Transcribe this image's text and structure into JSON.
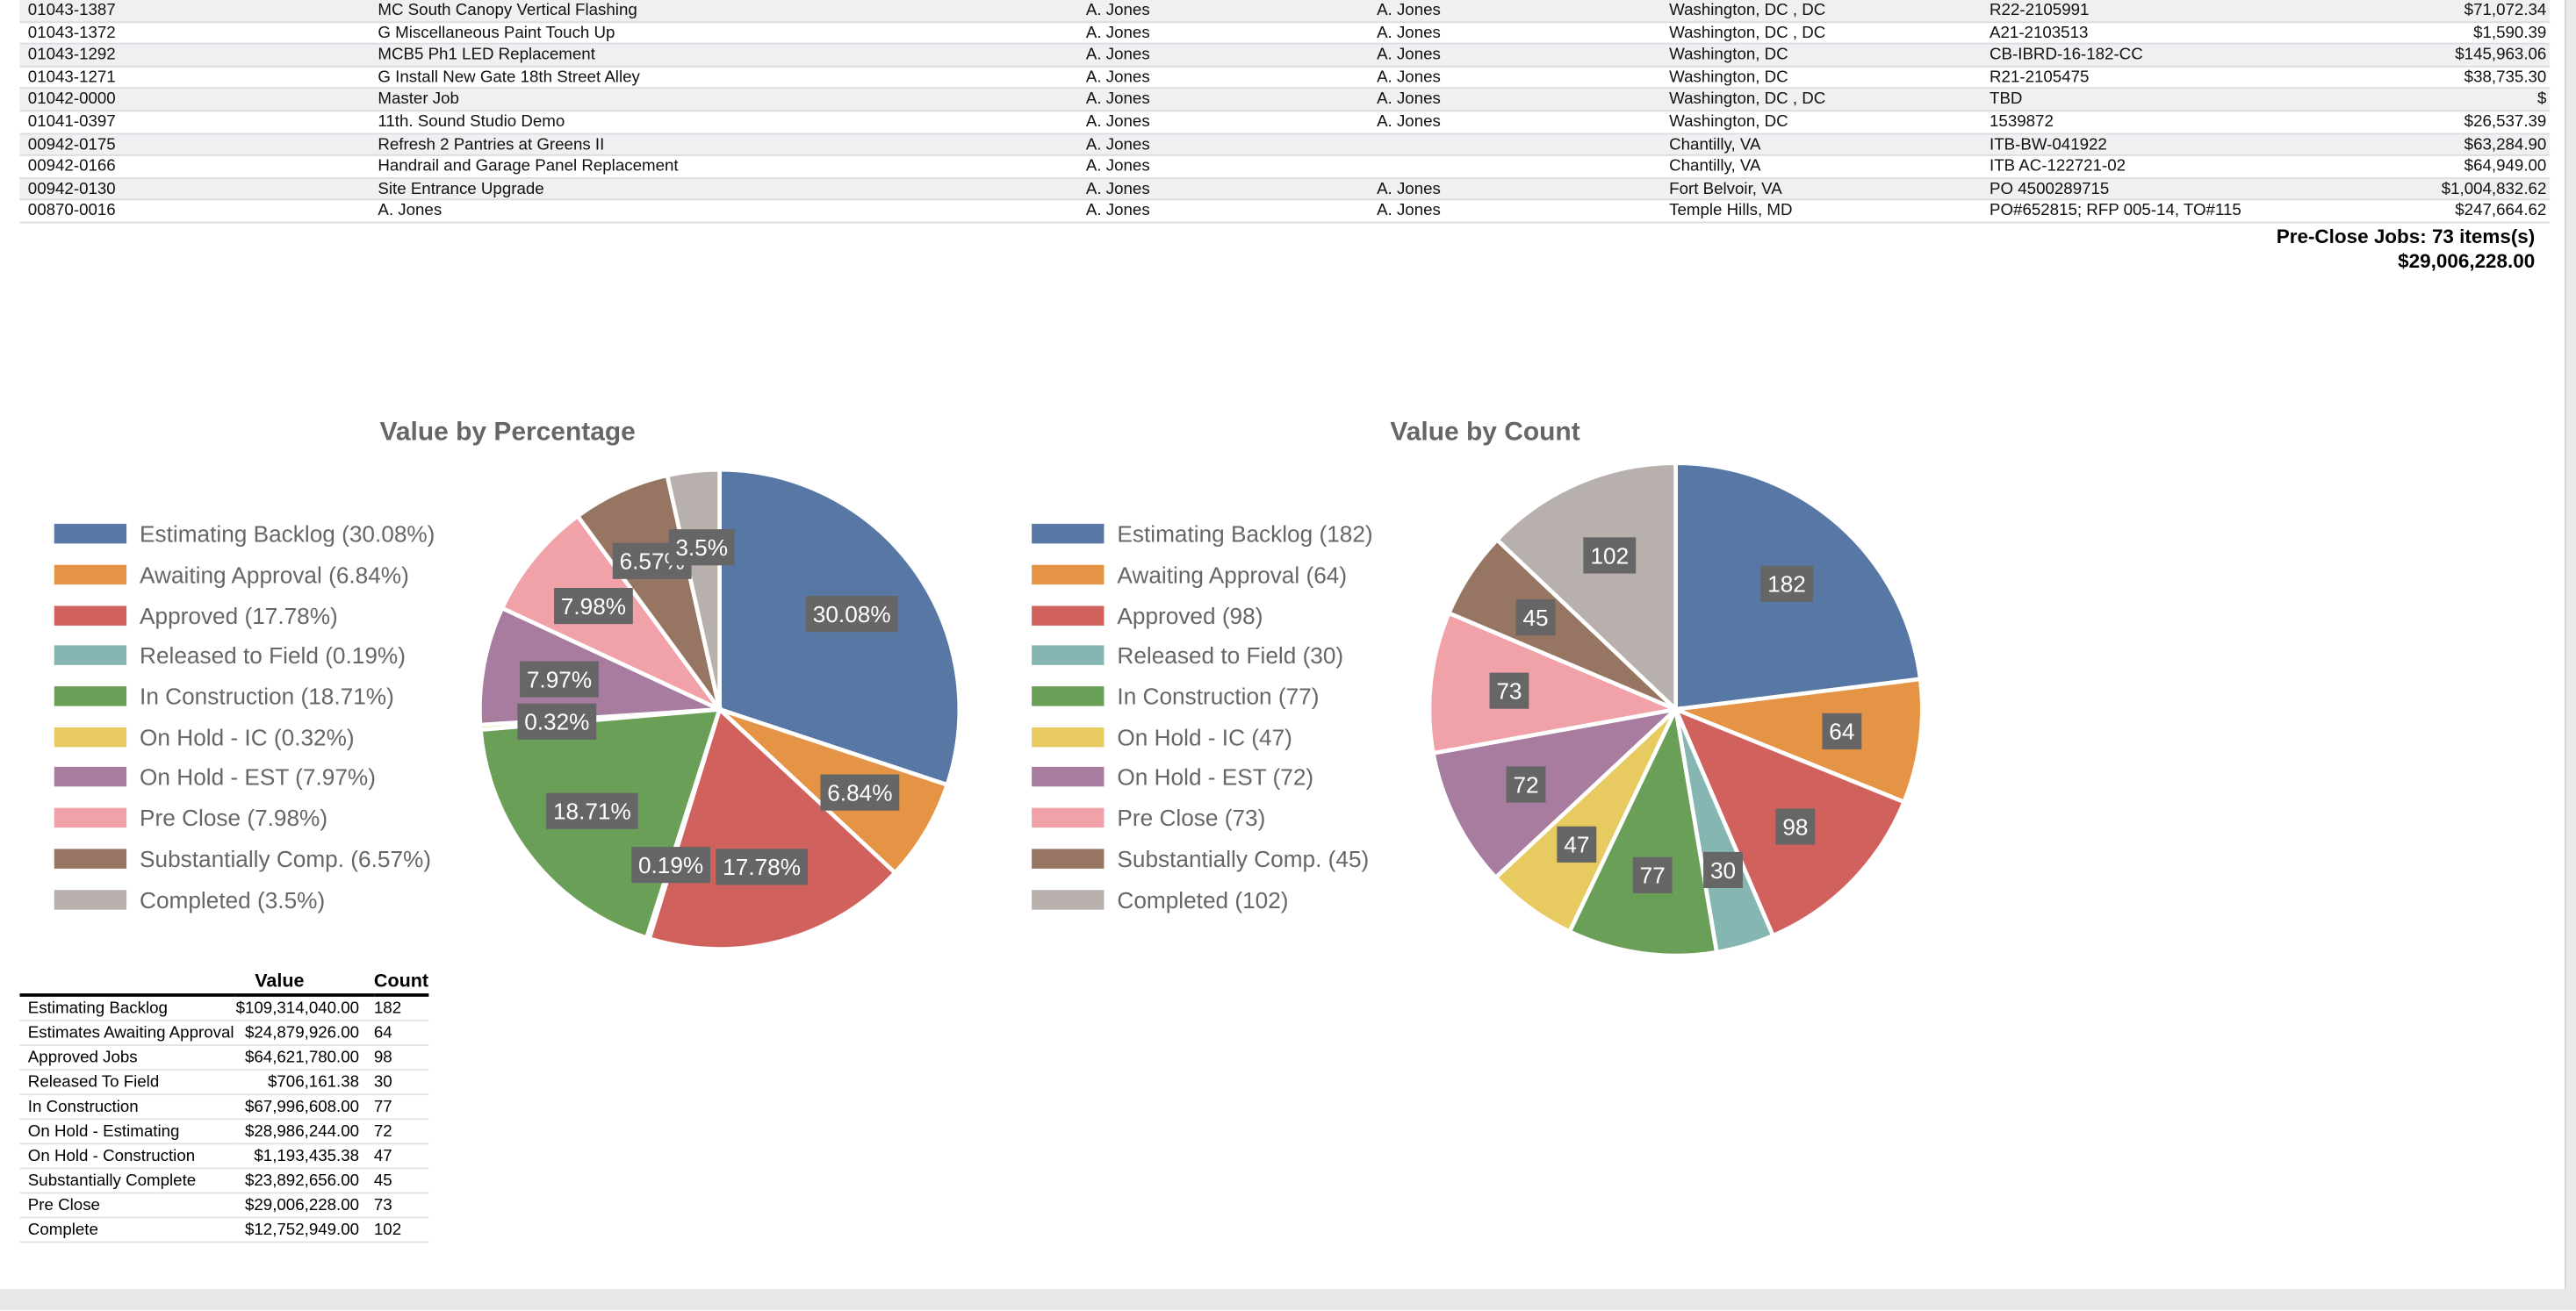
{
  "jobs": [
    [
      "01043-1387",
      "MC South Canopy Vertical Flashing",
      "A. Jones",
      "A. Jones",
      "Washington, DC , DC",
      "R22-2105991",
      "$71,072.34"
    ],
    [
      "01043-1372",
      "G Miscellaneous Paint Touch Up",
      "A. Jones",
      "A. Jones",
      "Washington, DC , DC",
      "A21-2103513",
      "$1,590.39"
    ],
    [
      "01043-1292",
      "MCB5 Ph1 LED Replacement",
      "A. Jones",
      "A. Jones",
      "Washington, DC",
      "CB-IBRD-16-182-CC",
      "$145,963.06"
    ],
    [
      "01043-1271",
      "G Install New Gate 18th Street Alley",
      "A. Jones",
      "A. Jones",
      "Washington, DC",
      "R21-2105475",
      "$38,735.30"
    ],
    [
      "01042-0000",
      "Master Job",
      "A. Jones",
      "A. Jones",
      "Washington, DC , DC",
      "TBD",
      "$"
    ],
    [
      "01041-0397",
      "11th. Sound Studio Demo",
      "A. Jones",
      "A. Jones",
      "Washington, DC",
      "1539872",
      "$26,537.39"
    ],
    [
      "00942-0175",
      "Refresh 2 Pantries at Greens II",
      "A. Jones",
      "",
      "Chantilly, VA",
      "ITB-BW-041922",
      "$63,284.90"
    ],
    [
      "00942-0166",
      "Handrail and Garage Panel Replacement",
      "A. Jones",
      "",
      "Chantilly, VA",
      "ITB AC-122721-02",
      "$64,949.00"
    ],
    [
      "00942-0130",
      "Site Entrance Upgrade",
      "A. Jones",
      "A. Jones",
      "Fort Belvoir, VA",
      "PO 4500289715",
      "$1,004,832.62"
    ],
    [
      "00870-0016",
      "A. Jones",
      "A. Jones",
      "A. Jones",
      "Temple Hills, MD",
      "PO#652815; RFP 005-14, TO#115",
      "$247,664.62"
    ]
  ],
  "summary": {
    "label": "Pre-Close Jobs: 73 items(s)",
    "total": "$29,006,228.00"
  },
  "chart_data": [
    {
      "type": "pie",
      "title": "Value by Percentage",
      "legend": "left",
      "categories": [
        "Estimating Backlog",
        "Awaiting Approval",
        "Approved",
        "Released to Field",
        "In Construction",
        "On Hold - IC",
        "On Hold - EST",
        "Pre Close",
        "Substantially Comp.",
        "Completed"
      ],
      "legend_labels": [
        "Estimating Backlog (30.08%)",
        "Awaiting Approval (6.84%)",
        "Approved (17.78%)",
        "Released to Field (0.19%)",
        "In Construction (18.71%)",
        "On Hold - IC (0.32%)",
        "On Hold - EST (7.97%)",
        "Pre Close (7.98%)",
        "Substantially Comp. (6.57%)",
        "Completed (3.5%)"
      ],
      "values": [
        30.08,
        6.84,
        17.78,
        0.19,
        18.71,
        0.32,
        7.97,
        7.98,
        6.57,
        3.5
      ],
      "data_labels": [
        "30.08%",
        "6.84%",
        "17.78%",
        "0.19%",
        "18.71%",
        "0.32%",
        "7.97%",
        "7.98%",
        "6.57%",
        "3.5%"
      ]
    },
    {
      "type": "pie",
      "title": "Value by Count",
      "legend": "left",
      "categories": [
        "Estimating Backlog",
        "Awaiting Approval",
        "Approved",
        "Released to Field",
        "In Construction",
        "On Hold - IC",
        "On Hold - EST",
        "Pre Close",
        "Substantially Comp.",
        "Completed"
      ],
      "legend_labels": [
        "Estimating Backlog (182)",
        "Awaiting Approval (64)",
        "Approved (98)",
        "Released to Field (30)",
        "In Construction (77)",
        "On Hold - IC (47)",
        "On Hold - EST (72)",
        "Pre Close (73)",
        "Substantially Comp. (45)",
        "Completed (102)"
      ],
      "values": [
        182,
        64,
        98,
        30,
        77,
        47,
        72,
        73,
        45,
        102
      ],
      "data_labels": [
        "182",
        "64",
        "98",
        "30",
        "77",
        "47",
        "72",
        "73",
        "45",
        "102"
      ]
    }
  ],
  "colors": [
    "#5778a4",
    "#e49444",
    "#d1615d",
    "#85b6b2",
    "#6a9f58",
    "#e7ca60",
    "#a87c9f",
    "#f1a2a9",
    "#967662",
    "#b8b0ac"
  ],
  "status_table": {
    "headers": [
      "",
      "Value",
      "Count"
    ],
    "rows": [
      [
        "Estimating Backlog",
        "$109,314,040.00",
        "182"
      ],
      [
        "Estimates Awaiting Approval",
        "$24,879,926.00",
        "64"
      ],
      [
        "Approved Jobs",
        "$64,621,780.00",
        "98"
      ],
      [
        "Released To Field",
        "$706,161.38",
        "30"
      ],
      [
        "In Construction",
        "$67,996,608.00",
        "77"
      ],
      [
        "On Hold - Estimating",
        "$28,986,244.00",
        "72"
      ],
      [
        "On Hold - Construction",
        "$1,193,435.38",
        "47"
      ],
      [
        "Substantially Complete",
        "$23,892,656.00",
        "45"
      ],
      [
        "Pre Close",
        "$29,006,228.00",
        "73"
      ],
      [
        "Complete",
        "$12,752,949.00",
        "102"
      ]
    ]
  }
}
